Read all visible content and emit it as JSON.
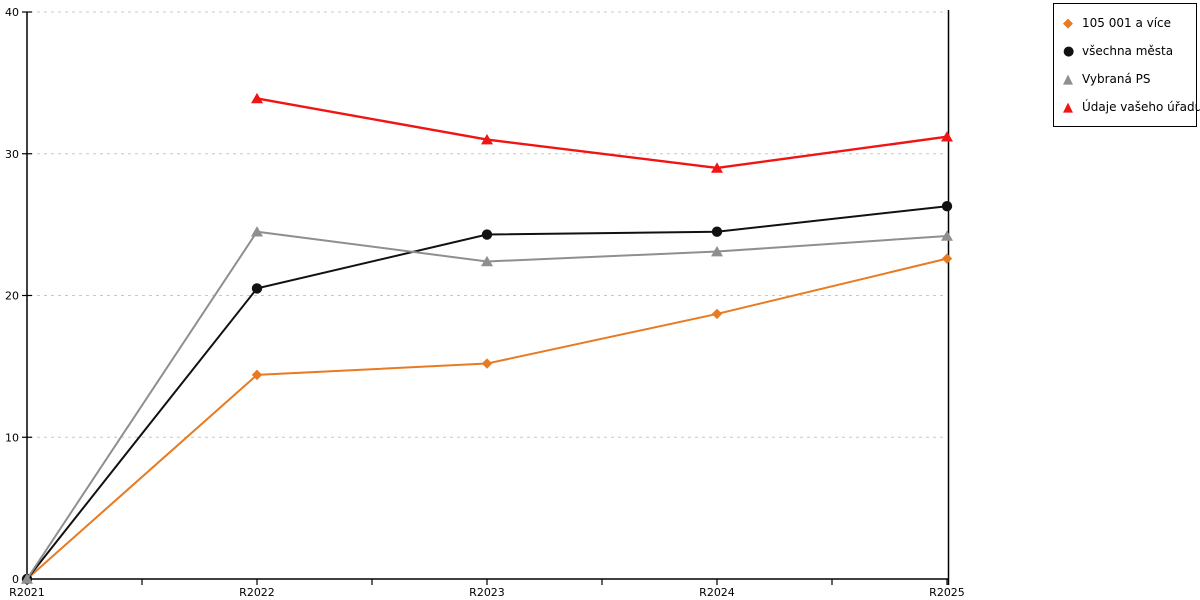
{
  "chart_data": {
    "type": "line",
    "title": "",
    "xlabel": "",
    "ylabel": "",
    "categories": [
      "R2021",
      "R2022",
      "R2023",
      "R2024",
      "R2025"
    ],
    "series": [
      {
        "name": "105 001 a více",
        "marker": "diamond",
        "color": "#e87a22",
        "values": [
          0,
          14.4,
          15.2,
          18.7,
          22.6
        ]
      },
      {
        "name": "všechna města",
        "marker": "circle",
        "color": "#111111",
        "values": [
          0,
          20.5,
          24.3,
          24.5,
          26.3
        ]
      },
      {
        "name": "Vybraná PS",
        "marker": "triangle",
        "color": "#8f8f8f",
        "values": [
          0,
          24.5,
          22.4,
          23.1,
          24.2
        ]
      },
      {
        "name": "Údaje vašeho úřadu",
        "marker": "triangle",
        "color": "#f01414",
        "values": [
          null,
          33.9,
          31.0,
          29.0,
          31.2
        ]
      }
    ],
    "ylim": [
      0,
      40
    ],
    "yticks": [
      0,
      10,
      20,
      30,
      40
    ],
    "grid": "horizontal-dashed",
    "legend_position": "top-right"
  },
  "legend": {
    "marker_glyphs": {
      "diamond": "◆",
      "circle": "●",
      "triangle": "▲"
    }
  },
  "colors": {
    "background": "#ffffff",
    "axis": "#000000",
    "gridline": "#c8c8c8",
    "text": "#000000"
  }
}
